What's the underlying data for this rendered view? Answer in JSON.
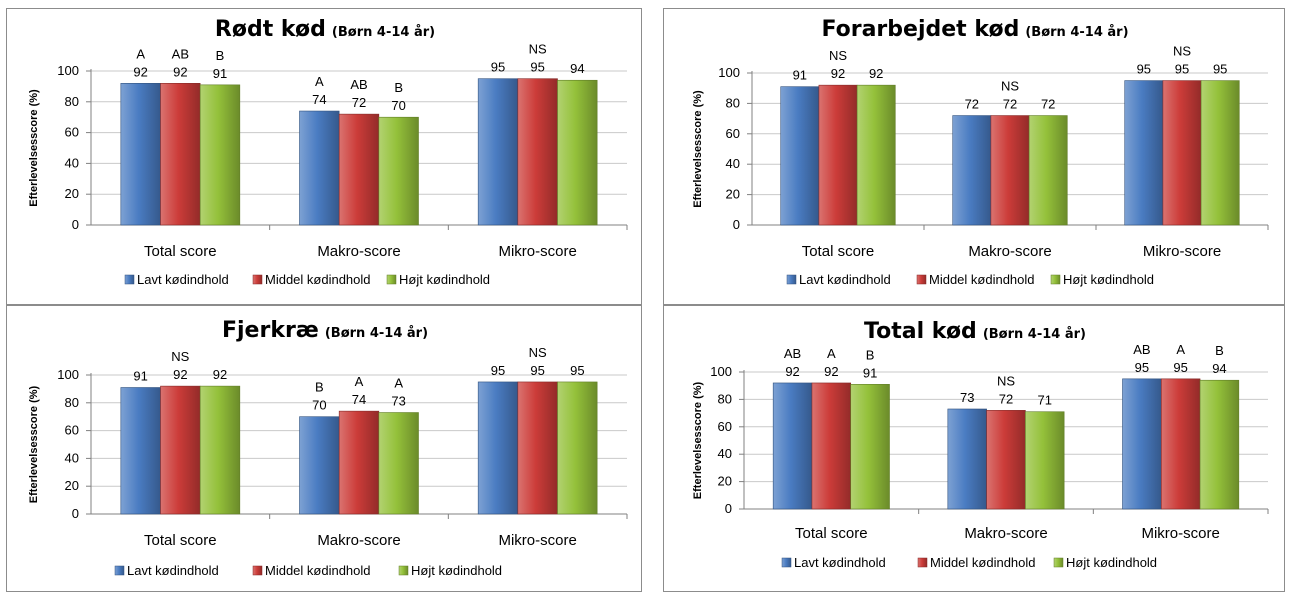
{
  "colors": {
    "lavt": "#4a7cc2",
    "middel": "#cc3c39",
    "hoejt": "#94c13a"
  },
  "chart_data": [
    {
      "type": "bar",
      "title": "Rødt kød",
      "subtitle": "(Børn 4-14 år)",
      "ylabel": "Efterlevelsesscore (%)",
      "ylim": [
        0,
        100
      ],
      "yticks": [
        "0",
        "20",
        "40",
        "60",
        "80",
        "100"
      ],
      "grid": true,
      "legend_position": "bottom",
      "categories": [
        "Total score",
        "Makro-score",
        "Mikro-score"
      ],
      "series": [
        {
          "name": "Lavt kødindhold",
          "values": [
            92,
            74,
            95
          ]
        },
        {
          "name": "Middel kødindhold",
          "values": [
            92,
            72,
            95
          ]
        },
        {
          "name": "Højt kødindhold",
          "values": [
            91,
            70,
            94
          ]
        }
      ],
      "annotations": [
        [
          "A",
          "AB",
          "B"
        ],
        [
          "A",
          "AB",
          "B"
        ],
        [
          "",
          "NS",
          ""
        ]
      ]
    },
    {
      "type": "bar",
      "title": "Forarbejdet kød",
      "subtitle": "(Børn 4-14 år)",
      "ylabel": "Efterlevelsesscore (%)",
      "ylim": [
        0,
        100
      ],
      "yticks": [
        "0",
        "20",
        "40",
        "60",
        "80",
        "100"
      ],
      "grid": true,
      "legend_position": "bottom",
      "categories": [
        "Total score",
        "Makro-score",
        "Mikro-score"
      ],
      "series": [
        {
          "name": "Lavt kødindhold",
          "values": [
            91,
            72,
            95
          ]
        },
        {
          "name": "Middel kødindhold",
          "values": [
            92,
            72,
            95
          ]
        },
        {
          "name": "Højt kødindhold",
          "values": [
            92,
            72,
            95
          ]
        }
      ],
      "annotations": [
        [
          "",
          "NS",
          ""
        ],
        [
          "",
          "NS",
          ""
        ],
        [
          "",
          "NS",
          ""
        ]
      ]
    },
    {
      "type": "bar",
      "title": "Fjerkræ",
      "subtitle": "(Børn 4-14 år)",
      "ylabel": "Efterlevelsesscore (%)",
      "ylim": [
        0,
        100
      ],
      "yticks": [
        "0",
        "20",
        "40",
        "60",
        "80",
        "100"
      ],
      "grid": true,
      "legend_position": "bottom",
      "categories": [
        "Total score",
        "Makro-score",
        "Mikro-score"
      ],
      "series": [
        {
          "name": "Lavt kødindhold",
          "values": [
            91,
            70,
            95
          ]
        },
        {
          "name": "Middel kødindhold",
          "values": [
            92,
            74,
            95
          ]
        },
        {
          "name": "Højt kødindhold",
          "values": [
            92,
            73,
            95
          ]
        }
      ],
      "annotations": [
        [
          "",
          "NS",
          ""
        ],
        [
          "B",
          "A",
          "A"
        ],
        [
          "",
          "NS",
          ""
        ]
      ]
    },
    {
      "type": "bar",
      "title": "Total kød",
      "subtitle": "(Børn 4-14 år)",
      "ylabel": "Efterlevelsesscore (%)",
      "ylim": [
        0,
        100
      ],
      "yticks": [
        "0",
        "20",
        "40",
        "60",
        "80",
        "100"
      ],
      "grid": true,
      "legend_position": "bottom",
      "categories": [
        "Total score",
        "Makro-score",
        "Mikro-score"
      ],
      "series": [
        {
          "name": "Lavt kødindhold",
          "values": [
            92,
            73,
            95
          ]
        },
        {
          "name": "Middel kødindhold",
          "values": [
            92,
            72,
            95
          ]
        },
        {
          "name": "Højt kødindhold",
          "values": [
            91,
            71,
            94
          ]
        }
      ],
      "annotations": [
        [
          "AB",
          "A",
          "B"
        ],
        [
          "",
          "NS",
          ""
        ],
        [
          "AB",
          "A",
          "B"
        ]
      ]
    }
  ]
}
